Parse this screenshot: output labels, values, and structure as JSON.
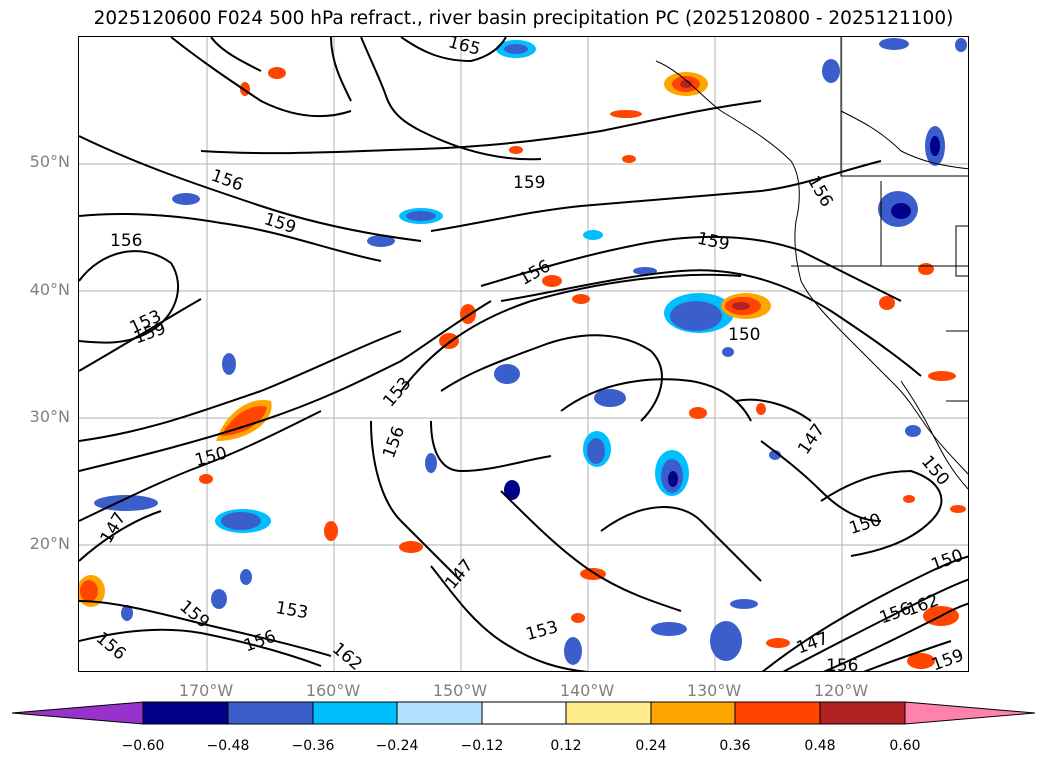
{
  "title": "2025120600 F024 500 hPa refract., river basin precipitation PC (2025120800 - 2025121100)",
  "lat_labels": [
    "50°N",
    "40°N",
    "30°N",
    "20°N"
  ],
  "lon_labels": [
    "170°W",
    "160°W",
    "150°W",
    "140°W",
    "130°W",
    "120°W"
  ],
  "contour_labels": [
    "156",
    "159",
    "156",
    "153",
    "159",
    "159",
    "156",
    "159",
    "150",
    "153",
    "156",
    "150",
    "147",
    "150",
    "150",
    "147",
    "153",
    "156",
    "162",
    "159",
    "153",
    "165",
    "147",
    "156",
    "156",
    "150",
    "162",
    "159",
    "156",
    "147",
    "156"
  ],
  "colorbar": {
    "ticks": [
      "−0.60",
      "−0.48",
      "−0.36",
      "−0.24",
      "−0.12",
      "0.12",
      "0.24",
      "0.36",
      "0.48",
      "0.60"
    ],
    "colors": [
      "#9932cc",
      "#00008b",
      "#3a5fcd",
      "#00bfff",
      "#b0e2ff",
      "#ffffff",
      "#ffec8b",
      "#ffa500",
      "#ff4500",
      "#b22222",
      "#ff82ab"
    ]
  }
}
